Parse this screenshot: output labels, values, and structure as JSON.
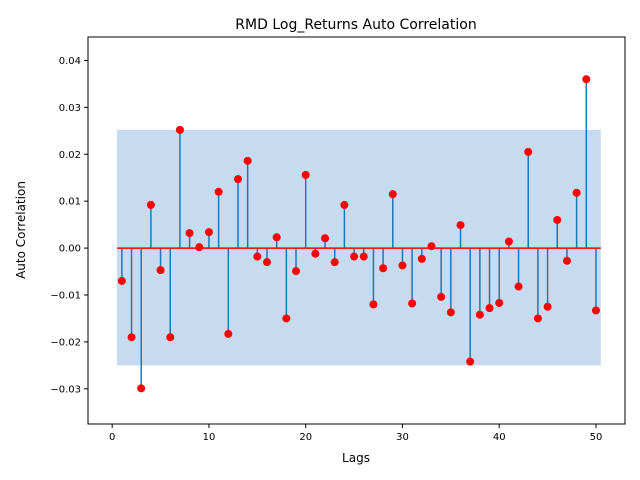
{
  "chart_data": {
    "type": "stem",
    "title": "RMD Log_Returns Auto Correlation",
    "xlabel": "Lags",
    "ylabel": "Auto Correlation",
    "xlim": [
      -2.5,
      53
    ],
    "ylim": [
      -0.0375,
      0.045
    ],
    "xticks": [
      0,
      10,
      20,
      30,
      40,
      50
    ],
    "xtick_labels": [
      "0",
      "10",
      "20",
      "30",
      "40",
      "50"
    ],
    "yticks": [
      -0.03,
      -0.02,
      -0.01,
      0.0,
      0.01,
      0.02,
      0.03,
      0.04
    ],
    "ytick_labels": [
      "−0.03",
      "−0.02",
      "−0.01",
      "0.00",
      "0.01",
      "0.02",
      "0.03",
      "0.04"
    ],
    "confidence_band": {
      "x_start": 0.5,
      "x_end": 50.5,
      "lower": -0.025,
      "upper": 0.0252
    },
    "zero_line": 0.0,
    "lags": [
      1,
      2,
      3,
      4,
      5,
      6,
      7,
      8,
      9,
      10,
      11,
      12,
      13,
      14,
      15,
      16,
      17,
      18,
      19,
      20,
      21,
      22,
      23,
      24,
      25,
      26,
      27,
      28,
      29,
      30,
      31,
      32,
      33,
      34,
      35,
      36,
      37,
      38,
      39,
      40,
      41,
      42,
      43,
      44,
      45,
      46,
      47,
      48,
      49,
      50
    ],
    "values": [
      -0.007,
      -0.019,
      -0.0299,
      0.0092,
      -0.0047,
      -0.019,
      0.0252,
      0.0032,
      0.0002,
      0.0034,
      0.012,
      -0.0183,
      0.0147,
      0.0186,
      -0.0018,
      -0.003,
      0.0023,
      -0.015,
      -0.0049,
      0.0156,
      -0.0012,
      0.0021,
      -0.003,
      0.0092,
      -0.0018,
      -0.0018,
      -0.012,
      -0.0043,
      0.0115,
      -0.0037,
      -0.0118,
      -0.0023,
      0.0004,
      -0.0104,
      -0.0137,
      0.0049,
      -0.0242,
      -0.0142,
      -0.0128,
      -0.0117,
      0.0014,
      -0.0082,
      0.0205,
      -0.015,
      -0.0125,
      0.006,
      -0.0027,
      0.0118,
      0.036,
      -0.0133
    ],
    "colors": {
      "stem": "#1f77b4",
      "marker": "#ff0000",
      "zero_line": "#ff0000",
      "band": "#c6dbef"
    }
  }
}
